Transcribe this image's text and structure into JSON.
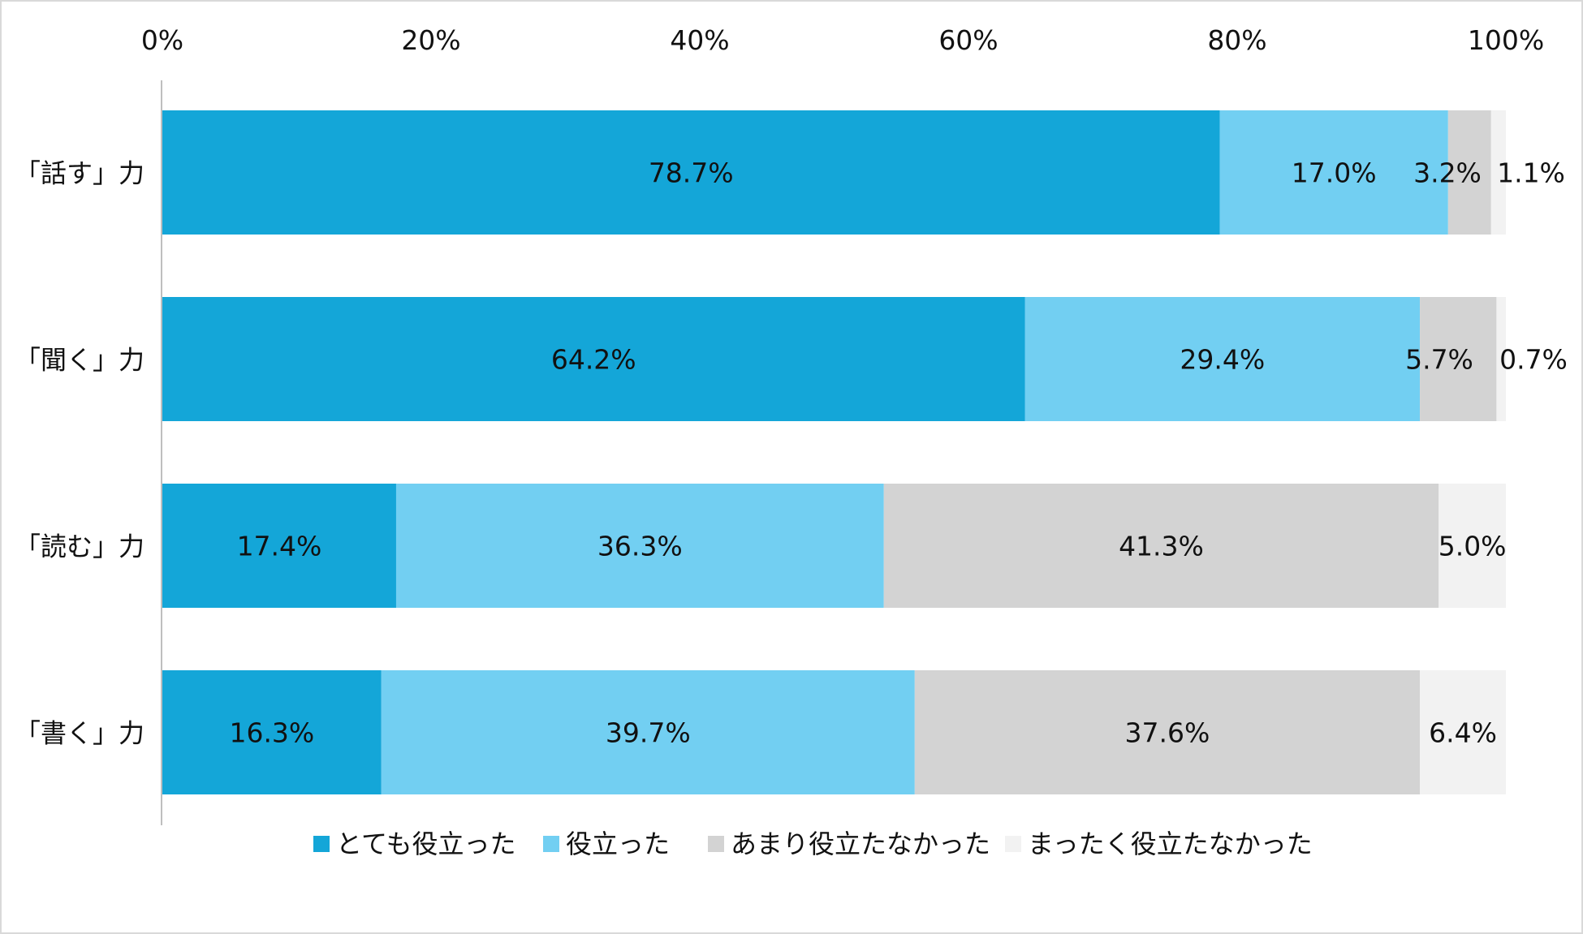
{
  "chart_data": {
    "type": "bar",
    "orientation": "horizontal",
    "stacked": "100%",
    "categories": [
      "「話す」力",
      "「聞く」力",
      "「読む」力",
      "「書く」力"
    ],
    "series": [
      {
        "name": "とても役立った",
        "color": "#14a6d8",
        "values": [
          78.7,
          64.2,
          17.4,
          16.3
        ],
        "labels": [
          "78.7%",
          "64.2%",
          "17.4%",
          "16.3%"
        ]
      },
      {
        "name": "役立った",
        "color": "#72cff2",
        "values": [
          17.0,
          29.4,
          36.3,
          39.7
        ],
        "labels": [
          "17.0%",
          "29.4%",
          "36.3%",
          "39.7%"
        ]
      },
      {
        "name": "あまり役立たなかった",
        "color": "#d3d3d3",
        "values": [
          3.2,
          5.7,
          41.3,
          37.6
        ],
        "labels": [
          "3.2%",
          "5.7%",
          "41.3%",
          "37.6%"
        ]
      },
      {
        "name": "まったく役立たなかった",
        "color": "#f2f2f2",
        "values": [
          1.1,
          0.7,
          5.0,
          6.4
        ],
        "labels": [
          "1.1%",
          "0.7%",
          "5.0%",
          "6.4%"
        ]
      }
    ],
    "xlim": [
      0,
      100
    ],
    "xticks": [
      "0%",
      "20%",
      "40%",
      "60%",
      "80%",
      "100%"
    ],
    "xaxis_position": "top",
    "grid": false,
    "legend": "bottom"
  }
}
